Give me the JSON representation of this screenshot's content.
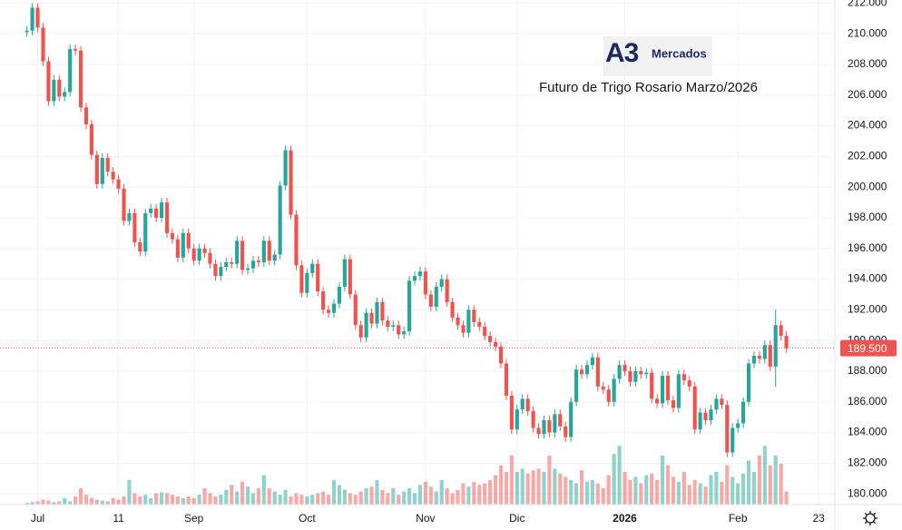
{
  "chart_data": {
    "type": "candlestick",
    "title": "Futuro de Trigo Rosario Marzo/2026",
    "logo_mark": "A3",
    "logo_text": "Mercados",
    "up_color": "#26a69a",
    "down_color": "#ef5350",
    "grid": true,
    "xlim": [
      -5,
      150
    ],
    "ylim": [
      179.3,
      212.2
    ],
    "vlim": [
      0,
      100
    ],
    "xticks": [
      {
        "value": 2,
        "label": "Jul"
      },
      {
        "value": 17,
        "label": "11"
      },
      {
        "value": 31,
        "label": "Sep"
      },
      {
        "value": 52,
        "label": "Oct"
      },
      {
        "value": 74,
        "label": "Nov"
      },
      {
        "value": 91,
        "label": "Dic"
      },
      {
        "value": 111,
        "label": "2026"
      },
      {
        "value": 132,
        "label": "Feb"
      },
      {
        "value": 147,
        "label": "23"
      }
    ],
    "yticks": [
      {
        "value": 180,
        "label": "180.000"
      },
      {
        "value": 182,
        "label": "182.000"
      },
      {
        "value": 184,
        "label": "184.000"
      },
      {
        "value": 186,
        "label": "186.000"
      },
      {
        "value": 188,
        "label": "188.000"
      },
      {
        "value": 190,
        "label": "190.000"
      },
      {
        "value": 192,
        "label": "192.000"
      },
      {
        "value": 194,
        "label": "194.000"
      },
      {
        "value": 196,
        "label": "196.000"
      },
      {
        "value": 198,
        "label": "198.000"
      },
      {
        "value": 200,
        "label": "200.000"
      },
      {
        "value": 202,
        "label": "202.000"
      },
      {
        "value": 204,
        "label": "204.000"
      },
      {
        "value": 206,
        "label": "206.000"
      },
      {
        "value": 208,
        "label": "208.000"
      },
      {
        "value": 210,
        "label": "210.000"
      },
      {
        "value": 212,
        "label": "212.000"
      }
    ],
    "last_price": {
      "value": 189.5,
      "label": "189.500"
    },
    "open": [
      210.1,
      210.2,
      211.7,
      210.4,
      208.2,
      205.6,
      207.0,
      205.9,
      206.2,
      209.0,
      208.9,
      205.2,
      204.1,
      202.1,
      200.2,
      201.9,
      201.0,
      200.5,
      199.9,
      197.8,
      198.3,
      196.4,
      195.8,
      198.3,
      198.6,
      198.0,
      199.0,
      197.0,
      196.6,
      195.4,
      197.0,
      196.0,
      195.2,
      196.0,
      195.7,
      195.0,
      194.2,
      194.8,
      195.1,
      195.0,
      196.5,
      194.6,
      194.7,
      195.2,
      195.1,
      196.5,
      195.2,
      195.6,
      200.1,
      202.4,
      198.2,
      194.9,
      193.1,
      194.4,
      195.0,
      193.2,
      192.0,
      191.8,
      192.4,
      193.5,
      195.3,
      193.0,
      191.0,
      190.2,
      191.8,
      191.1,
      192.5,
      191.3,
      190.9,
      191.0,
      190.4,
      190.6,
      193.9,
      194.2,
      194.5,
      193.0,
      192.2,
      193.5,
      194.0,
      192.5,
      191.5,
      191.0,
      190.5,
      192.0,
      191.2,
      190.9,
      190.3,
      189.9,
      189.6,
      188.5,
      186.4,
      184.2,
      185.5,
      186.2,
      185.4,
      184.3,
      183.9,
      184.8,
      184.0,
      185.2,
      184.4,
      183.7,
      186.0,
      188.1,
      187.8,
      188.4,
      188.9,
      187.0,
      186.8,
      186.0,
      187.5,
      188.4,
      188.0,
      187.3,
      188.0,
      187.8,
      187.9,
      186.2,
      185.9,
      187.7,
      186.1,
      185.6,
      187.8,
      187.4,
      187.0,
      184.2,
      185.3,
      184.8,
      185.5,
      186.2,
      185.8,
      182.7,
      184.3,
      184.6,
      186.0,
      188.5,
      189.0,
      188.8,
      189.7,
      188.3,
      191.0,
      190.3
    ],
    "high": [
      210.5,
      212.0,
      212.0,
      210.7,
      208.5,
      207.3,
      207.3,
      206.5,
      209.3,
      209.3,
      209.2,
      205.5,
      204.4,
      202.4,
      202.2,
      202.2,
      201.3,
      200.8,
      200.2,
      198.6,
      198.6,
      196.7,
      198.6,
      198.9,
      198.9,
      199.3,
      199.3,
      197.3,
      196.9,
      197.3,
      197.3,
      196.3,
      196.3,
      196.3,
      196.0,
      195.3,
      195.1,
      195.4,
      195.4,
      196.8,
      196.8,
      195.0,
      195.5,
      195.5,
      196.8,
      196.8,
      195.9,
      200.4,
      202.7,
      202.7,
      198.5,
      195.2,
      194.7,
      195.3,
      195.3,
      193.5,
      192.3,
      192.7,
      193.8,
      195.6,
      195.6,
      193.3,
      191.3,
      192.1,
      192.1,
      192.8,
      192.8,
      191.6,
      191.3,
      191.3,
      190.9,
      194.2,
      194.5,
      194.8,
      194.8,
      193.3,
      193.8,
      194.3,
      194.3,
      192.8,
      191.8,
      191.3,
      192.3,
      192.3,
      191.5,
      191.2,
      190.6,
      190.2,
      189.9,
      188.8,
      186.7,
      185.8,
      186.5,
      186.5,
      185.7,
      184.6,
      185.1,
      185.1,
      185.5,
      185.5,
      184.7,
      186.3,
      188.4,
      188.4,
      188.7,
      189.2,
      189.2,
      187.3,
      187.1,
      187.8,
      188.7,
      188.7,
      188.3,
      188.3,
      188.3,
      188.2,
      188.2,
      186.5,
      188.0,
      188.0,
      186.4,
      188.1,
      188.1,
      187.7,
      187.3,
      185.6,
      185.6,
      185.8,
      186.5,
      186.5,
      186.1,
      184.6,
      184.9,
      186.3,
      188.8,
      189.3,
      189.3,
      190.0,
      190.0,
      192.0,
      191.3,
      190.6
    ],
    "low": [
      209.8,
      209.9,
      210.1,
      207.9,
      205.3,
      205.3,
      205.6,
      205.6,
      205.9,
      208.6,
      204.9,
      203.8,
      201.8,
      199.9,
      199.9,
      200.7,
      200.2,
      199.6,
      197.5,
      197.5,
      196.1,
      195.5,
      195.5,
      198.0,
      197.7,
      197.7,
      196.7,
      196.3,
      195.1,
      195.1,
      195.7,
      194.9,
      194.9,
      195.4,
      194.7,
      193.9,
      193.9,
      194.5,
      194.7,
      194.7,
      194.3,
      194.3,
      194.4,
      194.8,
      194.8,
      194.9,
      194.9,
      195.3,
      199.8,
      197.9,
      194.6,
      192.8,
      192.8,
      194.1,
      192.9,
      191.7,
      191.5,
      191.5,
      192.1,
      193.2,
      192.7,
      190.7,
      189.9,
      189.9,
      190.8,
      190.8,
      191.0,
      190.6,
      190.6,
      190.1,
      190.1,
      190.3,
      193.6,
      193.9,
      192.7,
      191.9,
      191.9,
      193.2,
      192.2,
      191.2,
      190.7,
      190.2,
      190.2,
      190.9,
      190.6,
      190.0,
      189.6,
      189.3,
      188.2,
      186.1,
      183.9,
      183.9,
      185.2,
      185.1,
      184.0,
      183.6,
      183.6,
      183.7,
      183.7,
      184.1,
      183.4,
      183.4,
      185.7,
      187.5,
      187.5,
      188.1,
      186.7,
      186.5,
      185.7,
      185.7,
      187.2,
      187.7,
      187.0,
      187.0,
      187.5,
      187.5,
      185.9,
      185.6,
      185.6,
      185.8,
      185.3,
      185.3,
      187.1,
      186.7,
      183.9,
      183.9,
      184.5,
      184.5,
      185.2,
      185.5,
      182.4,
      182.4,
      184.0,
      184.3,
      185.7,
      188.2,
      188.5,
      188.5,
      188.0,
      187.0,
      190.0,
      189.2
    ],
    "close": [
      210.2,
      211.7,
      210.4,
      208.2,
      205.6,
      207.0,
      205.9,
      206.2,
      209.0,
      208.9,
      205.2,
      204.1,
      202.1,
      200.2,
      201.9,
      201.0,
      200.5,
      199.9,
      197.8,
      198.3,
      196.4,
      195.8,
      198.3,
      198.6,
      198.0,
      199.0,
      197.0,
      196.6,
      195.4,
      197.0,
      196.0,
      195.2,
      196.0,
      195.7,
      195.0,
      194.2,
      194.8,
      195.1,
      195.0,
      196.5,
      194.6,
      194.7,
      195.2,
      195.1,
      196.5,
      195.2,
      195.6,
      200.1,
      202.4,
      198.2,
      194.9,
      193.1,
      194.4,
      195.0,
      193.2,
      192.0,
      191.8,
      192.4,
      193.5,
      195.3,
      193.0,
      191.0,
      190.2,
      191.8,
      191.1,
      192.5,
      191.3,
      190.9,
      191.0,
      190.4,
      190.6,
      193.9,
      194.2,
      194.5,
      193.0,
      192.2,
      193.5,
      194.0,
      192.5,
      191.5,
      191.0,
      190.5,
      192.0,
      191.2,
      190.9,
      190.3,
      189.9,
      189.6,
      188.5,
      186.4,
      184.2,
      185.5,
      186.2,
      185.4,
      184.3,
      183.9,
      184.8,
      184.0,
      185.2,
      184.4,
      183.7,
      186.0,
      188.1,
      187.8,
      188.4,
      188.9,
      187.0,
      186.8,
      186.0,
      187.5,
      188.4,
      188.0,
      187.3,
      188.0,
      187.8,
      187.9,
      186.2,
      185.9,
      187.7,
      186.1,
      185.6,
      187.8,
      187.4,
      187.0,
      184.2,
      185.3,
      184.8,
      185.5,
      186.2,
      185.8,
      182.7,
      184.3,
      184.6,
      186.0,
      188.5,
      189.0,
      188.8,
      189.7,
      188.3,
      191.0,
      190.3,
      189.5
    ],
    "volume": [
      2,
      3,
      4,
      6,
      5,
      3,
      4,
      8,
      4,
      10,
      20,
      12,
      8,
      6,
      5,
      4,
      8,
      6,
      10,
      30,
      14,
      10,
      12,
      8,
      14,
      15,
      14,
      12,
      10,
      8,
      10,
      8,
      12,
      20,
      14,
      10,
      12,
      18,
      24,
      16,
      28,
      22,
      14,
      20,
      36,
      20,
      16,
      12,
      18,
      10,
      14,
      12,
      10,
      12,
      14,
      16,
      12,
      30,
      24,
      18,
      14,
      12,
      16,
      20,
      22,
      30,
      18,
      14,
      20,
      12,
      16,
      20,
      14,
      24,
      28,
      22,
      16,
      30,
      20,
      14,
      18,
      26,
      22,
      28,
      24,
      26,
      30,
      36,
      48,
      40,
      60,
      40,
      44,
      38,
      42,
      44,
      40,
      60,
      44,
      38,
      34,
      30,
      26,
      42,
      28,
      30,
      26,
      20,
      36,
      62,
      72,
      40,
      30,
      34,
      26,
      36,
      38,
      30,
      60,
      48,
      34,
      28,
      40,
      24,
      30,
      26,
      22,
      36,
      40,
      28,
      48,
      34,
      26,
      38,
      54,
      40,
      60,
      72,
      48,
      60,
      50,
      16
    ]
  }
}
